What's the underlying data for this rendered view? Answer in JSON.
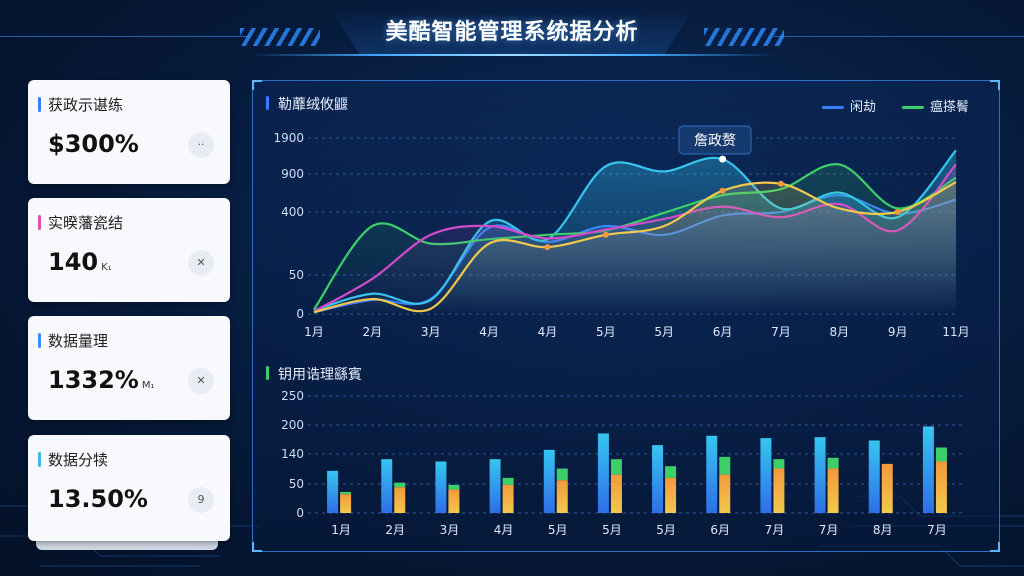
{
  "header": {
    "title": "美酷智能管理系统据分析"
  },
  "cards": [
    {
      "label": "获政示谌练",
      "value": "$300%",
      "unit": "",
      "button": "··",
      "color": "#3a7bff"
    },
    {
      "label": "实暌藩瓷结",
      "value": "140",
      "unit": "K₁",
      "button": "✕",
      "color": "#e04fb0"
    },
    {
      "label": "数据量理",
      "value": "1332%",
      "unit": "M₁",
      "button": "✕",
      "color": "#3a8dff"
    },
    {
      "label": "数据分犊",
      "value": "13.50%",
      "unit": "",
      "button": "9",
      "color": "#3fb6e6"
    }
  ],
  "line_section": {
    "title": "勒蘼绒攸鼴",
    "tooltip": "詹政赘"
  },
  "bar_section": {
    "title": "钥用诰理繇賓"
  },
  "legend": [
    {
      "label": "闲劫",
      "color": "#3b7bff"
    },
    {
      "label": "瘟搽鬌",
      "color": "#3ccf6a"
    }
  ],
  "colors": {
    "blue": "#3b7bff",
    "cyan": "#35c6f0",
    "green": "#3ccf6a",
    "pink": "#d24bc8",
    "yellow": "#f2c94c",
    "orange": "#f29a3c"
  },
  "chart_data": [
    {
      "type": "line",
      "categories": [
        "1月",
        "2月",
        "3月",
        "4月",
        "4月",
        "5月",
        "5月",
        "6月",
        "7月",
        "8月",
        "9月",
        "11月"
      ],
      "yticks": [
        "1900",
        "900",
        "400",
        "50",
        "0"
      ],
      "series": [
        {
          "name": "闲劫",
          "color": "#3b7bff",
          "values": [
            20,
            160,
            170,
            980,
            820,
            1000,
            900,
            1120,
            1160,
            1350,
            1140,
            1300
          ]
        },
        {
          "name": "",
          "color": "#35c6f0",
          "values": [
            40,
            230,
            160,
            1050,
            850,
            1680,
            1620,
            1760,
            1200,
            1380,
            1100,
            1860
          ]
        },
        {
          "name": "瘟搽鬌",
          "color": "#3ccf6a",
          "values": [
            50,
            1000,
            800,
            850,
            900,
            950,
            1150,
            1350,
            1420,
            1700,
            1200,
            1550
          ]
        },
        {
          "name": "",
          "color": "#d24bc8",
          "values": [
            30,
            400,
            900,
            1000,
            860,
            960,
            1080,
            1220,
            1100,
            1250,
            950,
            1700
          ]
        },
        {
          "name": "",
          "color": "#f2c94c",
          "values": [
            20,
            170,
            60,
            800,
            760,
            900,
            1000,
            1400,
            1480,
            1200,
            1160,
            1500
          ]
        }
      ]
    },
    {
      "type": "bar",
      "categories": [
        "1月",
        "2月",
        "3月",
        "4月",
        "5月",
        "5月",
        "5月",
        "6月",
        "7月",
        "7月",
        "8月",
        "7月"
      ],
      "yticks": [
        "250",
        "200",
        "140",
        "50",
        "0"
      ],
      "series": [
        {
          "name": "",
          "color": "#35a4f0",
          "values": [
            90,
            115,
            110,
            115,
            135,
            170,
            145,
            165,
            160,
            162,
            155,
            185
          ]
        },
        {
          "name": "",
          "color": "#3ccf6a",
          "values": [
            45,
            65,
            60,
            75,
            95,
            115,
            100,
            120,
            115,
            118,
            0,
            140
          ]
        },
        {
          "name": "",
          "color": "#f29a3c",
          "values": [
            40,
            55,
            50,
            60,
            70,
            82,
            75,
            82,
            95,
            95,
            105,
            110
          ]
        }
      ]
    }
  ]
}
